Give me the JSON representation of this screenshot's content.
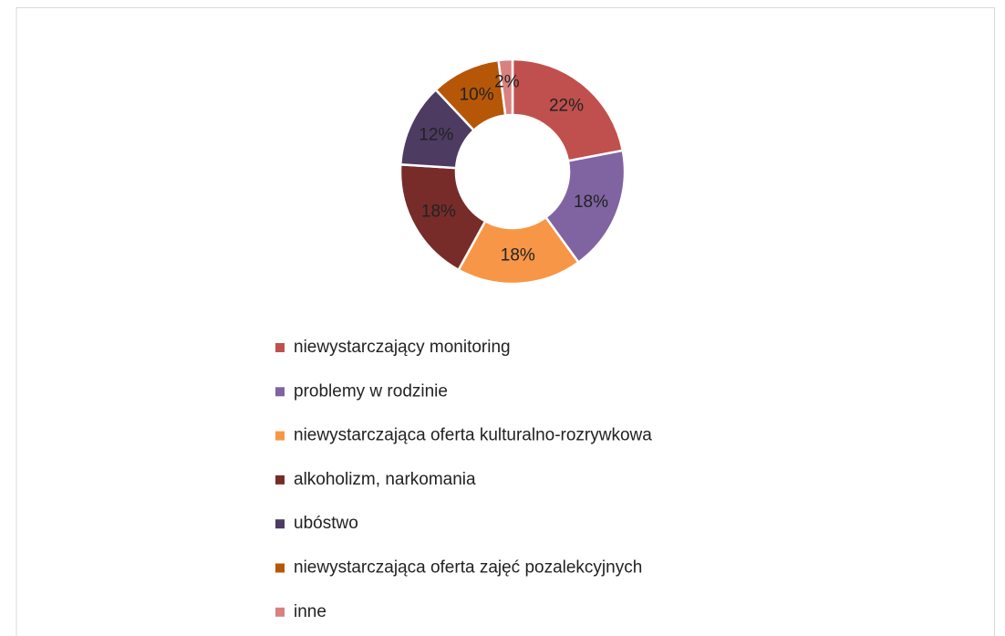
{
  "chart_data": {
    "type": "donut",
    "categories": [
      "niewystarczający monitoring",
      "problemy w rodzinie",
      "niewystarczająca oferta kulturalno-rozrywkowa",
      "alkoholizm, narkomania",
      "ubóstwo",
      "niewystarczająca oferta zajęć pozalekcyjnych",
      "inne"
    ],
    "values": [
      22,
      18,
      18,
      18,
      12,
      10,
      2
    ],
    "value_labels": [
      "22%",
      "18%",
      "18%",
      "18%",
      "12%",
      "10%",
      "2%"
    ],
    "colors": [
      "#c0504d",
      "#8064a2",
      "#f79646",
      "#772c2a",
      "#4d3b62",
      "#b65708",
      "#d98080"
    ],
    "legend": "bottom"
  }
}
